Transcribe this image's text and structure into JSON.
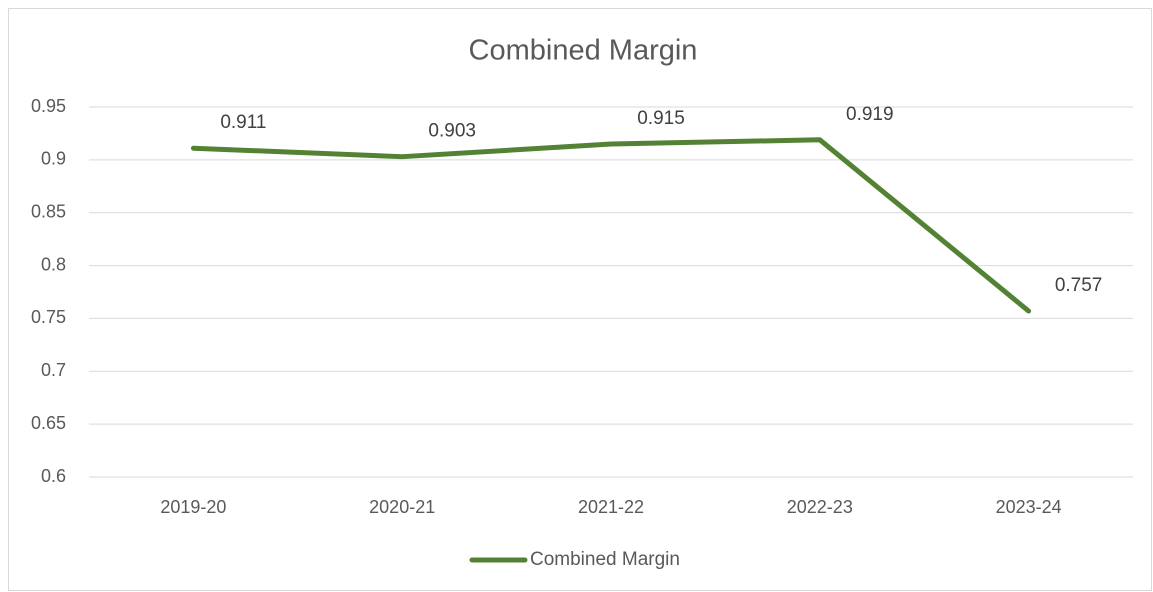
{
  "chart_data": {
    "type": "line",
    "title": "Combined Margin",
    "categories": [
      "2019-20",
      "2020-21",
      "2021-22",
      "2022-23",
      "2023-24"
    ],
    "series": [
      {
        "name": "Combined Margin",
        "color": "#548235",
        "values": [
          0.911,
          0.903,
          0.915,
          0.919,
          0.757
        ]
      }
    ],
    "ylim": [
      0.6,
      0.95
    ],
    "yticks": [
      0.6,
      0.65,
      0.7,
      0.75,
      0.8,
      0.85,
      0.9,
      0.95
    ],
    "grid": true,
    "legend": "bottom",
    "data_labels": true
  }
}
